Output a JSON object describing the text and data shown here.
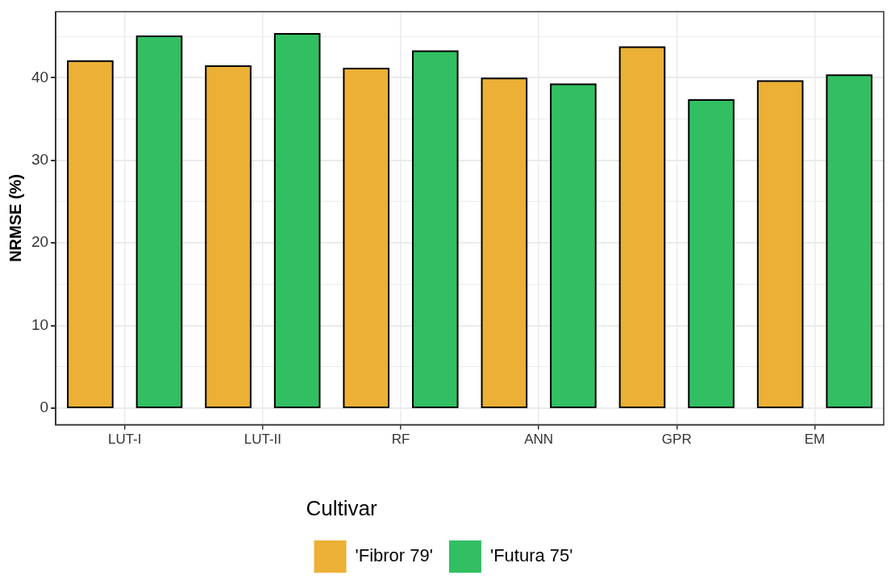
{
  "chart_data": {
    "type": "bar",
    "ylabel": "NRMSE (%)",
    "legend_title": "Cultivar",
    "legend": "bottom",
    "grid": true,
    "categories": [
      "LUT-I",
      "LUT-II",
      "RF",
      "ANN",
      "GPR",
      "EM"
    ],
    "series": [
      {
        "name": "'Fibror 79'",
        "color": "#ebb035",
        "values": [
          42.0,
          41.4,
          41.1,
          39.9,
          43.7,
          39.6
        ]
      },
      {
        "name": "'Futura 75'",
        "color": "#32bf62",
        "values": [
          45.0,
          45.3,
          43.2,
          39.2,
          37.3,
          40.3
        ]
      }
    ],
    "ylim": [
      -2,
      48
    ],
    "yticks": [
      0,
      {
        "value": 5,
        "label": null
      },
      10,
      {
        "value": 15,
        "label": null
      },
      20,
      {
        "value": 25,
        "label": null
      },
      30,
      {
        "value": 35,
        "label": null
      },
      40,
      {
        "value": 45,
        "label": null
      }
    ]
  }
}
